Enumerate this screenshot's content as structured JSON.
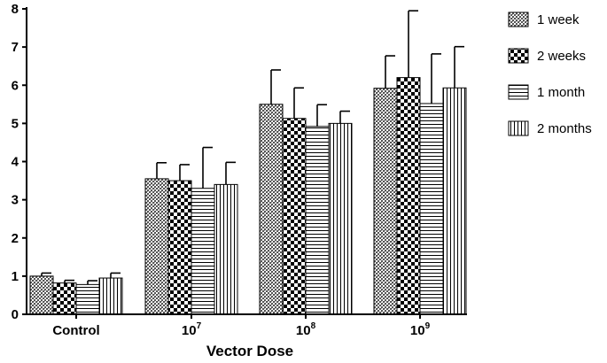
{
  "chart_data": {
    "type": "bar",
    "title": "",
    "xlabel": "Vector Dose",
    "ylabel": "",
    "ylim": [
      0,
      8
    ],
    "yticks": [
      0,
      1,
      2,
      3,
      4,
      5,
      6,
      7,
      8
    ],
    "categories": [
      {
        "base": "Control",
        "sup": ""
      },
      {
        "base": "10",
        "sup": "7"
      },
      {
        "base": "10",
        "sup": "8"
      },
      {
        "base": "10",
        "sup": "9"
      }
    ],
    "series": [
      {
        "name": "1 week",
        "pattern": "crosshatch",
        "values": [
          1.0,
          3.55,
          5.5,
          5.92
        ],
        "errors": [
          0.08,
          0.42,
          0.9,
          0.85
        ]
      },
      {
        "name": "2 weeks",
        "pattern": "checker",
        "values": [
          0.82,
          3.5,
          5.13,
          6.2
        ],
        "errors": [
          0.07,
          0.42,
          0.8,
          1.75
        ]
      },
      {
        "name": "1 month",
        "pattern": "hlines",
        "values": [
          0.78,
          3.3,
          4.92,
          5.52
        ],
        "errors": [
          0.1,
          1.07,
          0.57,
          1.3
        ]
      },
      {
        "name": "2 months",
        "pattern": "vlines",
        "values": [
          0.95,
          3.4,
          5.0,
          5.93
        ],
        "errors": [
          0.13,
          0.58,
          0.32,
          1.08
        ]
      }
    ]
  }
}
